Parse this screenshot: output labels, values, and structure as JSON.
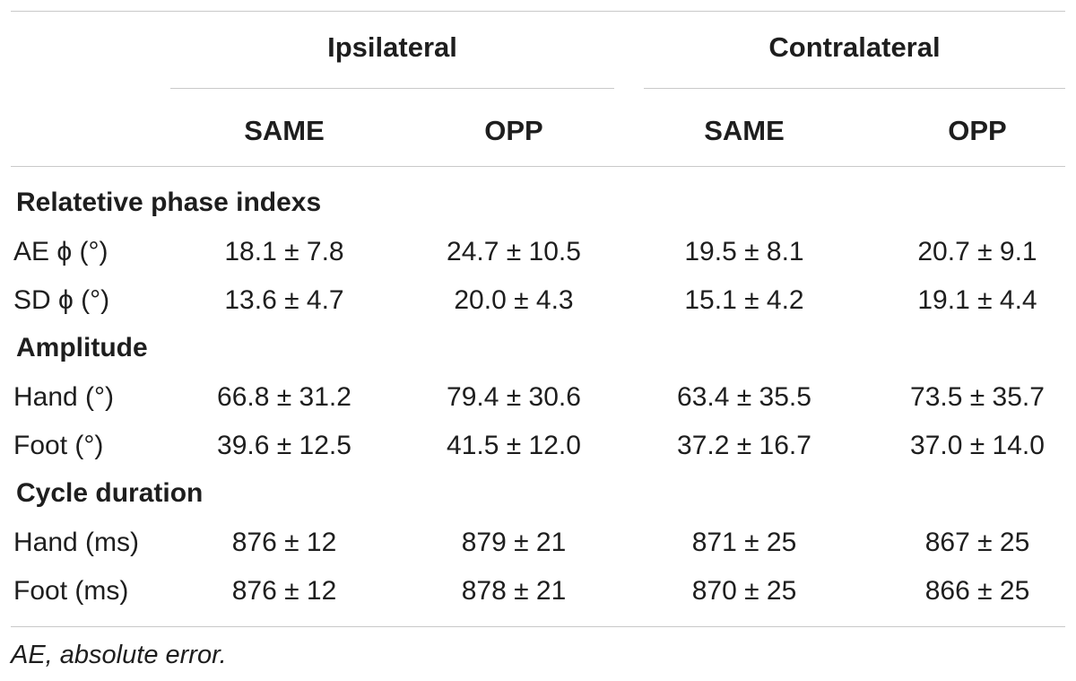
{
  "table": {
    "group_headers": [
      "Ipsilateral",
      "Contralateral"
    ],
    "column_headers": [
      "SAME",
      "OPP",
      "SAME",
      "OPP"
    ],
    "sections": [
      {
        "title": "Relatetive phase indexs",
        "rows": [
          {
            "label": "AE ϕ (°)",
            "values": [
              "18.1 ± 7.8",
              "24.7 ± 10.5",
              "19.5 ± 8.1",
              "20.7 ± 9.1"
            ]
          },
          {
            "label": "SD ϕ (°)",
            "values": [
              "13.6 ± 4.7",
              "20.0 ± 4.3",
              "15.1 ± 4.2",
              "19.1 ± 4.4"
            ]
          }
        ]
      },
      {
        "title": "Amplitude",
        "rows": [
          {
            "label": "Hand (°)",
            "values": [
              "66.8 ± 31.2",
              "79.4 ± 30.6",
              "63.4 ± 35.5",
              "73.5 ± 35.7"
            ]
          },
          {
            "label": "Foot (°)",
            "values": [
              "39.6 ± 12.5",
              "41.5 ± 12.0",
              "37.2 ± 16.7",
              "37.0 ± 14.0"
            ]
          }
        ]
      },
      {
        "title": "Cycle duration",
        "rows": [
          {
            "label": "Hand (ms)",
            "values": [
              "876 ± 12",
              "879 ± 21",
              "871 ± 25",
              "867 ± 25"
            ]
          },
          {
            "label": "Foot (ms)",
            "values": [
              "876 ± 12",
              "878 ± 21",
              "870 ± 25",
              "866 ± 25"
            ]
          }
        ]
      }
    ],
    "footnote": "AE, absolute error."
  }
}
